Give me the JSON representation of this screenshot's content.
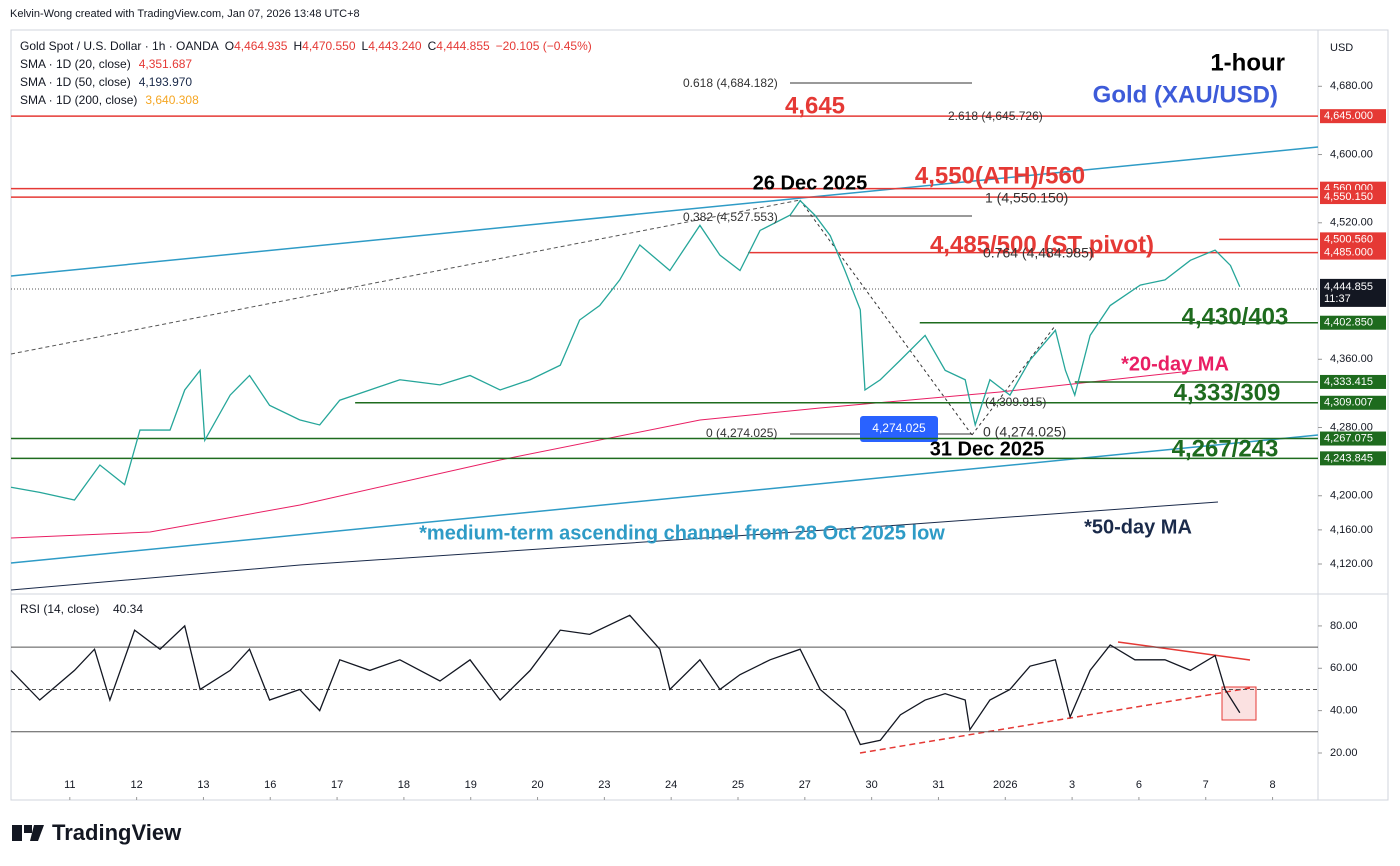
{
  "header": {
    "credit": "Kelvin-Wong created with TradingView.com, Jan 07, 2026 13:48 UTC+8",
    "symbol": "Gold Spot / U.S. Dollar · 1h · OANDA",
    "ohlc": [
      {
        "key": "O",
        "value": "4,464.935"
      },
      {
        "key": "H",
        "value": "4,470.550"
      },
      {
        "key": "L",
        "value": "4,443.240"
      },
      {
        "key": "C",
        "value": "4,444.855"
      }
    ],
    "change": "−20.105 (−0.45%)",
    "indicators": [
      {
        "name": "SMA · 1D (20, close)",
        "value": "4,351.687",
        "color": "#e53935"
      },
      {
        "name": "SMA · 1D (50, close)",
        "value": "4,193.970",
        "color": "#1a2a4a"
      },
      {
        "name": "SMA · 1D (200, close)",
        "value": "3,640.308",
        "color": "#f5a623"
      }
    ]
  },
  "chart_data": [
    {
      "type": "line",
      "currency": "USD",
      "color": "#26a69a",
      "x": [
        -0.88,
        -0.45,
        0.07,
        0.45,
        0.82,
        1.05,
        1.5,
        1.72,
        1.95,
        2.02,
        2.4,
        2.69,
        2.99,
        3.44,
        3.74,
        4.04,
        4.49,
        4.94,
        5.54,
        5.99,
        6.44,
        6.89,
        7.34,
        7.63,
        7.93,
        8.23,
        8.53,
        8.98,
        9.43,
        9.73,
        10.03,
        10.33,
        10.78,
        10.93,
        11.15,
        11.38,
        11.6,
        11.83,
        11.9,
        12.13,
        12.43,
        12.8,
        13.1,
        13.4,
        13.55,
        13.77,
        14.07,
        14.37,
        14.75,
        14.9,
        15.04,
        15.27,
        15.57,
        16.02,
        16.39,
        16.77,
        17.14,
        17.37,
        17.51
      ],
      "values": [
        4210,
        4204,
        4195,
        4236,
        4213,
        4277,
        4277,
        4324,
        4347,
        4265,
        4318,
        4341,
        4306,
        4289,
        4283,
        4312,
        4324,
        4336,
        4330,
        4341,
        4324,
        4336,
        4353,
        4406,
        4423,
        4453,
        4494,
        4464,
        4517,
        4482,
        4464,
        4511,
        4529,
        4546,
        4529,
        4505,
        4464,
        4418,
        4324,
        4336,
        4359,
        4388,
        4347,
        4336,
        4283,
        4336,
        4318,
        4359,
        4394,
        4347,
        4318,
        4388,
        4423,
        4447,
        4453,
        4476,
        4488,
        4470,
        4445
      ],
      "xlim": [
        -0.88,
        18.68
      ],
      "ylim": [
        4086,
        4746
      ],
      "yticks": [
        {
          "value": 4120,
          "label": "4,120.00"
        },
        {
          "value": 4160,
          "label": "4,160.00"
        },
        {
          "value": 4200,
          "label": "4,200.00"
        },
        {
          "value": 4280,
          "label": "4,280.00"
        },
        {
          "value": 4360,
          "label": "4,360.00"
        },
        {
          "value": 4520,
          "label": "4,520.00"
        },
        {
          "value": 4600,
          "label": "4,600.00"
        },
        {
          "value": 4680,
          "label": "4,680.00"
        }
      ],
      "levels": [
        {
          "value": 4645,
          "label": "4,645.000",
          "color": "#e53935",
          "x0": -0.88
        },
        {
          "value": 4560,
          "label": "4,560.000",
          "color": "#e53935",
          "x0": -0.88
        },
        {
          "value": 4550.15,
          "label": "4,550.150",
          "color": "#e53935",
          "x0": -0.88
        },
        {
          "value": 4500.56,
          "label": "4,500.560",
          "color": "#e53935",
          "x0": 17.2
        },
        {
          "value": 4485,
          "label": "4,485.000",
          "color": "#e53935",
          "x0": 10.15
        },
        {
          "value": 4402.85,
          "label": "4,402.850",
          "color": "#1e6b1e",
          "x0": 12.72
        },
        {
          "value": 4333.415,
          "label": "4,333.415",
          "color": "#1e6b1e",
          "x0": 15.04
        },
        {
          "value": 4309.007,
          "label": "4,309.007",
          "color": "#1e6b1e",
          "x0": 4.27
        },
        {
          "value": 4267.075,
          "label": "4,267.075",
          "color": "#1e6b1e",
          "x0": -0.88
        },
        {
          "value": 4243.845,
          "label": "4,243.845",
          "color": "#1e6b1e",
          "x0": -0.88
        }
      ],
      "last_price": {
        "value": 4444.855,
        "label": "4,444.855"
      },
      "countdown": "11:37"
    },
    {
      "type": "line",
      "title": "RSI (14, close)",
      "last": "40.34",
      "color": "#131722",
      "x": [
        -0.88,
        -0.45,
        0.07,
        0.37,
        0.6,
        0.97,
        1.35,
        1.72,
        1.95,
        2.4,
        2.69,
        2.99,
        3.44,
        3.74,
        4.04,
        4.49,
        4.94,
        5.54,
        5.99,
        6.44,
        6.89,
        7.34,
        7.78,
        8.38,
        8.83,
        8.98,
        9.43,
        9.73,
        10.03,
        10.48,
        10.93,
        11.23,
        11.6,
        11.83,
        12.13,
        12.43,
        12.8,
        13.1,
        13.4,
        13.47,
        13.77,
        14.07,
        14.37,
        14.75,
        14.97,
        15.27,
        15.57,
        15.94,
        16.39,
        16.77,
        17.14,
        17.29,
        17.51
      ],
      "values": [
        59,
        45,
        59,
        69,
        45,
        78,
        69,
        80,
        50,
        59,
        69,
        45,
        50,
        40,
        64,
        59,
        64,
        54,
        64,
        45,
        59,
        78,
        76,
        85,
        69,
        50,
        64,
        50,
        57,
        64,
        69,
        50,
        40,
        24,
        26,
        38,
        45,
        48,
        45,
        31,
        45,
        50,
        61,
        64,
        37,
        59,
        71,
        64,
        64,
        59,
        66,
        50,
        39
      ],
      "xlim": [
        -0.88,
        18.68
      ],
      "ylim": [
        -2.2,
        94.6
      ],
      "yticks": [
        {
          "value": 20,
          "label": "20.00"
        },
        {
          "value": 40,
          "label": "40.00"
        },
        {
          "value": 60,
          "label": "60.00"
        },
        {
          "value": 80,
          "label": "80.00"
        }
      ],
      "bands": [
        30,
        50,
        70
      ],
      "xticks": [
        {
          "value": 0,
          "label": "11"
        },
        {
          "value": 1,
          "label": "12"
        },
        {
          "value": 2,
          "label": "13"
        },
        {
          "value": 3,
          "label": "16"
        },
        {
          "value": 4,
          "label": "17"
        },
        {
          "value": 5,
          "label": "18"
        },
        {
          "value": 6,
          "label": "19"
        },
        {
          "value": 7,
          "label": "20"
        },
        {
          "value": 8,
          "label": "23"
        },
        {
          "value": 9,
          "label": "24"
        },
        {
          "value": 10,
          "label": "25"
        },
        {
          "value": 11,
          "label": "27"
        },
        {
          "value": 12,
          "label": "30"
        },
        {
          "value": 13,
          "label": "31"
        },
        {
          "value": 14,
          "label": "2026"
        },
        {
          "value": 15,
          "label": "3"
        },
        {
          "value": 16,
          "label": "6"
        },
        {
          "value": 17,
          "label": "7"
        },
        {
          "value": 18,
          "label": "8"
        }
      ]
    }
  ],
  "annotations": [
    "1-hour",
    "Gold (XAU/USD)",
    "4,645",
    "26 Dec 2025",
    "4,550(ATH)/560",
    "4,485/500 (ST pivot)",
    "4,430/403",
    "*20-day MA",
    "4,333/309",
    "31 Dec 2025",
    "4,267/243",
    "*medium-term ascending channel from 28 Oct 2025 low",
    "*50-day MA",
    "0.618 (4,684.182)",
    "2.618 (4,645.726)",
    "1 (4,550.150)",
    "0.382 (4,527.553)",
    "0.764 (4,484.985)",
    "0 (4,274.025)",
    "0 (4,274.025)",
    "(4,309.915)"
  ],
  "fib_box": "4,274.025",
  "footer": {
    "brand": "TradingView"
  }
}
